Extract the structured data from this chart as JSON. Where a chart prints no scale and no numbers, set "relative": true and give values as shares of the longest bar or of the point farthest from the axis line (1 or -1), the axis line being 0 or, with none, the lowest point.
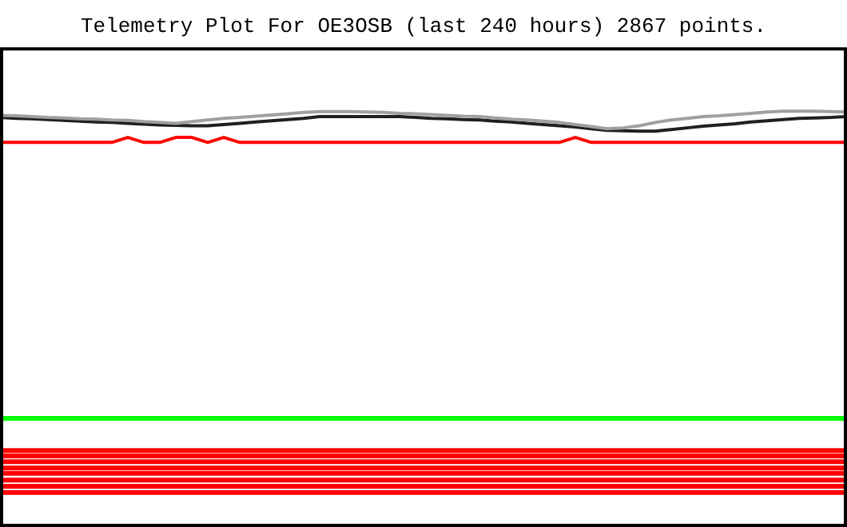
{
  "chart_data": {
    "type": "line",
    "title": "Telemetry Plot For OE3OSB (last 240 hours) 2867 points.",
    "relative": true,
    "legend": false,
    "marker": "none",
    "line_style": "solid",
    "categories": [
      null,
      null,
      null,
      null,
      null,
      null,
      null,
      null,
      null,
      null,
      null,
      null,
      null,
      null,
      null,
      null,
      null,
      null,
      null,
      null,
      null,
      null,
      null,
      null,
      null,
      null,
      null,
      null,
      null,
      null,
      null,
      null,
      null,
      null,
      null,
      null,
      null,
      null,
      null,
      null,
      null,
      null,
      null,
      null,
      null,
      null,
      null,
      null,
      null,
      null,
      null,
      null,
      null,
      null
    ],
    "series": [
      {
        "color": "#a0a0a0",
        "values": [
          0.99,
          0.989,
          0.987,
          0.985,
          0.984,
          0.982,
          0.981,
          0.979,
          0.978,
          0.975,
          0.973,
          0.971,
          0.975,
          0.979,
          0.983,
          0.985,
          0.988,
          0.991,
          0.994,
          0.997,
          0.999,
          0.999,
          0.999,
          0.998,
          0.997,
          0.995,
          0.994,
          0.992,
          0.99,
          0.988,
          0.987,
          0.984,
          0.981,
          0.979,
          0.976,
          0.973,
          0.968,
          0.963,
          0.958,
          0.96,
          0.965,
          0.973,
          0.979,
          0.983,
          0.987,
          0.989,
          0.992,
          0.995,
          0.998,
          1,
          1,
          1,
          0.999,
          0.998
        ]
      },
      {
        "color": "#202020",
        "values": [
          0.985,
          0.983,
          0.982,
          0.98,
          0.978,
          0.976,
          0.974,
          0.973,
          0.971,
          0.969,
          0.967,
          0.966,
          0.965,
          0.965,
          0.968,
          0.971,
          0.974,
          0.977,
          0.98,
          0.983,
          0.987,
          0.987,
          0.987,
          0.987,
          0.987,
          0.987,
          0.985,
          0.983,
          0.982,
          0.98,
          0.979,
          0.976,
          0.974,
          0.971,
          0.968,
          0.965,
          0.962,
          0.958,
          0.954,
          0.953,
          0.952,
          0.952,
          0.956,
          0.96,
          0.964,
          0.967,
          0.97,
          0.974,
          0.977,
          0.98,
          0.983,
          0.984,
          0.985,
          0.987
        ]
      },
      {
        "color": "#ff0000",
        "values": [
          0.925,
          0.925,
          0.925,
          0.925,
          0.925,
          0.925,
          0.925,
          0.925,
          0.937,
          0.925,
          0.925,
          0.937,
          0.937,
          0.925,
          0.937,
          0.925,
          0.925,
          0.925,
          0.925,
          0.925,
          0.925,
          0.925,
          0.925,
          0.925,
          0.925,
          0.925,
          0.925,
          0.925,
          0.925,
          0.925,
          0.925,
          0.925,
          0.925,
          0.925,
          0.925,
          0.925,
          0.937,
          0.925,
          0.925,
          0.925,
          0.925,
          0.925,
          0.925,
          0.925,
          0.925,
          0.925,
          0.925,
          0.925,
          0.925,
          0.925,
          0.925,
          0.925,
          0.925,
          0.925
        ]
      }
    ],
    "ref_lines": [
      {
        "axis": "y",
        "value": 0.261,
        "color": "#00ff00"
      },
      {
        "axis": "y",
        "value": 0.184,
        "color": "#ff0000"
      },
      {
        "axis": "y",
        "value": 0.171,
        "color": "#ff0000"
      },
      {
        "axis": "y",
        "value": 0.157,
        "color": "#ff0000"
      },
      {
        "axis": "y",
        "value": 0.142,
        "color": "#ff0000"
      },
      {
        "axis": "y",
        "value": 0.129,
        "color": "#ff0000"
      },
      {
        "axis": "y",
        "value": 0.113,
        "color": "#ff0000"
      },
      {
        "axis": "y",
        "value": 0.098,
        "color": "#ff0000"
      },
      {
        "axis": "y",
        "value": 0.083,
        "color": "#ff0000"
      }
    ]
  }
}
